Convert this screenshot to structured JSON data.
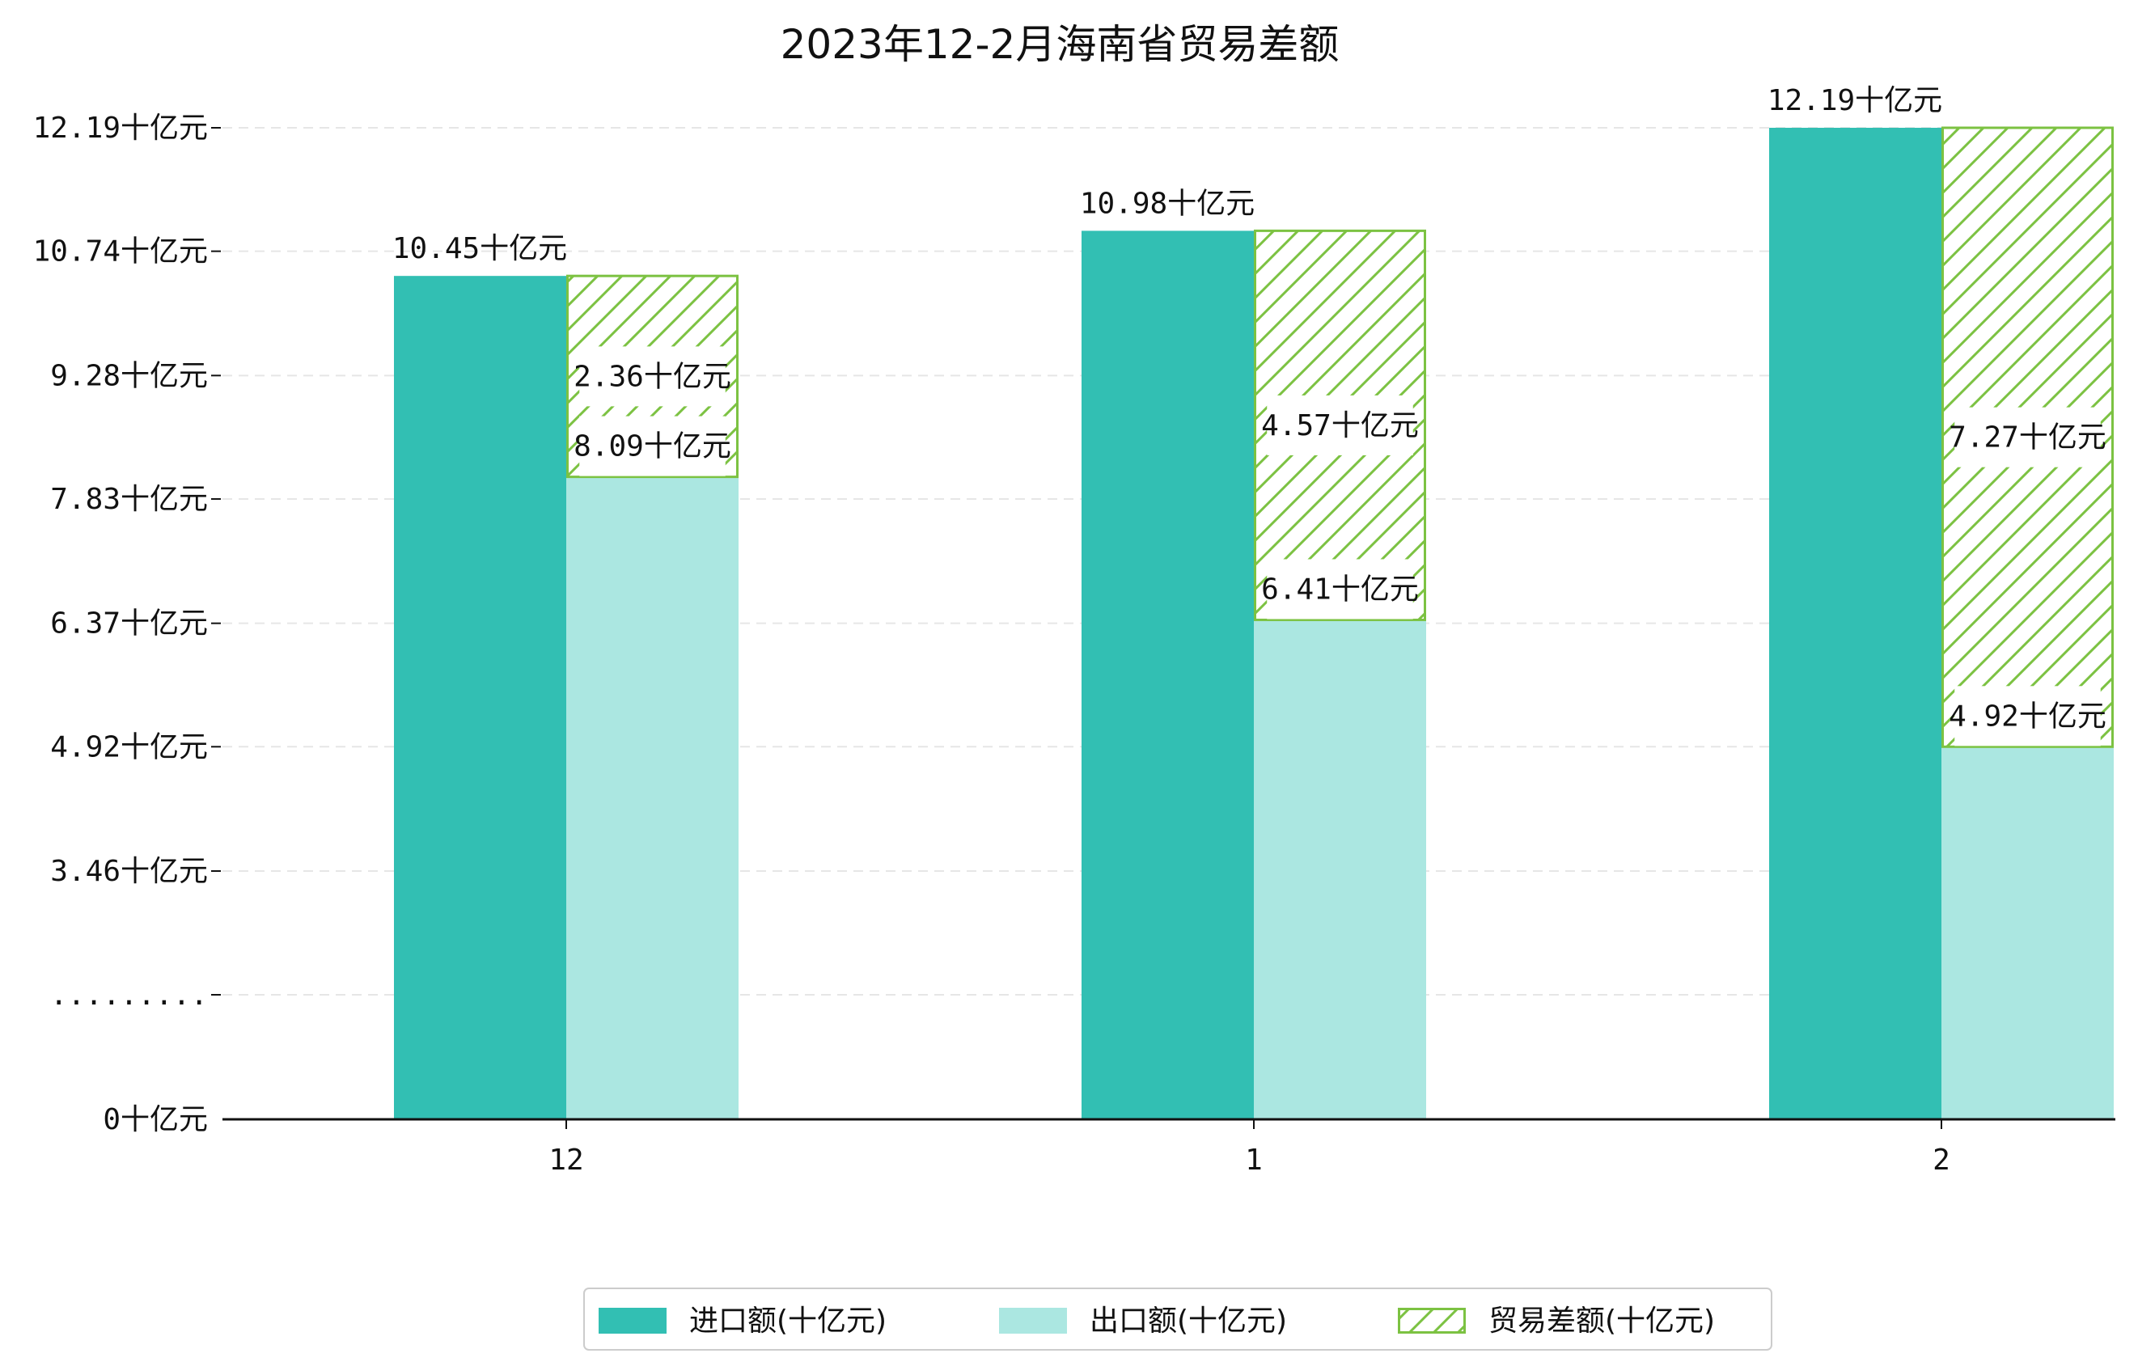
{
  "chart_data": {
    "type": "bar",
    "title": "2023年12-2月海南省贸易差额",
    "categories": [
      "12",
      "1",
      "2"
    ],
    "series": [
      {
        "name": "进口额(十亿元)",
        "values": [
          10.45,
          10.98,
          12.19
        ],
        "color": "#32bfb3"
      },
      {
        "name": "出口额(十亿元)",
        "values": [
          8.09,
          6.41,
          4.92
        ],
        "color": "#abe7e1"
      },
      {
        "name": "贸易差额(十亿元)",
        "values": [
          2.36,
          4.57,
          7.27
        ],
        "color": "#7cc242",
        "pattern": "hatch"
      }
    ],
    "value_labels": {
      "import": [
        "10.45十亿元",
        "10.98十亿元",
        "12.19十亿元"
      ],
      "export": [
        "8.09十亿元",
        "6.41十亿元",
        "4.92十亿元"
      ],
      "diff": [
        "2.36十亿元",
        "4.57十亿元",
        "7.27十亿元"
      ]
    },
    "y_ticks": [
      {
        "value": 0,
        "label": "0十亿元"
      },
      {
        "value": 2.0,
        "label": "........."
      },
      {
        "value": 3.46,
        "label": "3.46十亿元"
      },
      {
        "value": 4.92,
        "label": "4.92十亿元"
      },
      {
        "value": 6.37,
        "label": "6.37十亿元"
      },
      {
        "value": 7.83,
        "label": "7.83十亿元"
      },
      {
        "value": 9.28,
        "label": "9.28十亿元"
      },
      {
        "value": 10.74,
        "label": "10.74十亿元"
      },
      {
        "value": 12.19,
        "label": "12.19十亿元"
      }
    ],
    "y_axis_break": true,
    "grid": true,
    "legend_position": "bottom-center"
  }
}
